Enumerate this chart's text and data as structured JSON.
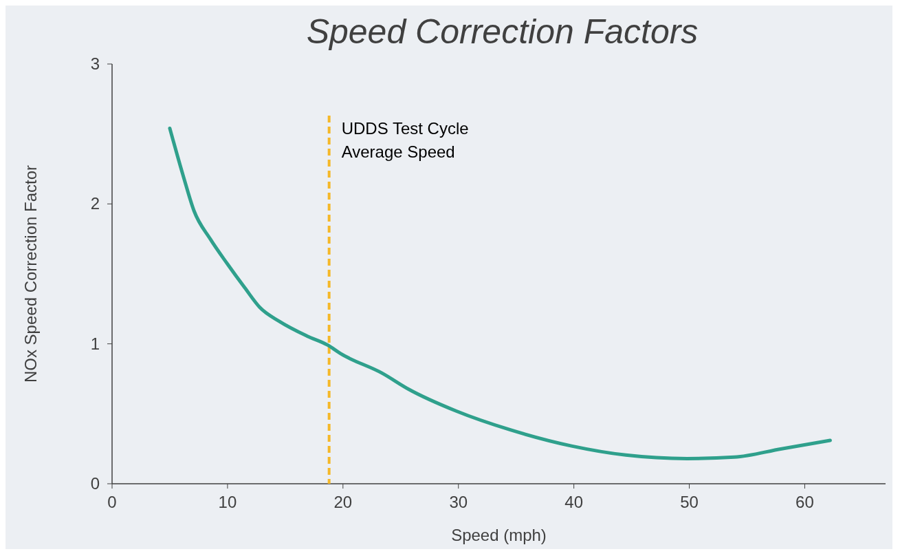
{
  "chart_data": {
    "type": "line",
    "title": "Speed Correction Factors",
    "xlabel": "Speed (mph)",
    "ylabel": "NOx Speed Correction Factor",
    "x": [
      5,
      6.2,
      7.1,
      8.5,
      10,
      11.5,
      12.8,
      14.5,
      16.9,
      18.7,
      19.8,
      23.4,
      25.7,
      29.8,
      34.5,
      39.8,
      44.5,
      49.8,
      53.9,
      58,
      62.2
    ],
    "series": [
      {
        "color": "#2fa08c",
        "values": [
          2.54,
          2.19,
          1.95,
          1.75,
          1.57,
          1.4,
          1.26,
          1.16,
          1.055,
          0.99,
          0.93,
          0.79,
          0.675,
          0.52,
          0.385,
          0.27,
          0.205,
          0.18,
          0.19,
          0.25,
          0.31
        ]
      }
    ],
    "xlim": [
      0,
      67
    ],
    "xticks": [
      0,
      10,
      20,
      30,
      40,
      50,
      60
    ],
    "ylim": [
      0,
      3
    ],
    "yticks": [
      0,
      1,
      2,
      3
    ],
    "grid": false,
    "line_style": "solid",
    "marker": "none",
    "ref_lines": [
      {
        "axis": "x",
        "value": 18.8,
        "label": "UDDS Test Cycle\nAverage Speed",
        "color": "#f5b828",
        "line_style": "dashed"
      }
    ]
  }
}
